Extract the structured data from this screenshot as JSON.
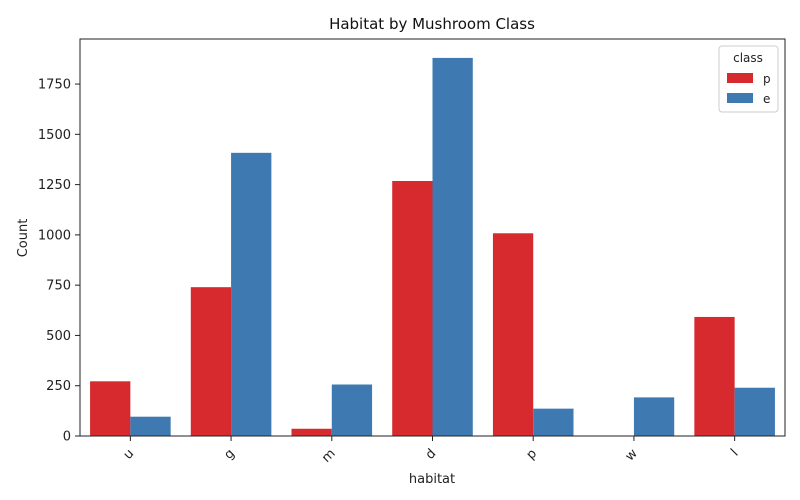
{
  "chart_data": {
    "type": "bar",
    "title": "Habitat by Mushroom Class",
    "xlabel": "habitat",
    "ylabel": "Count",
    "categories": [
      "u",
      "g",
      "m",
      "d",
      "p",
      "w",
      "l"
    ],
    "series": [
      {
        "name": "p",
        "color": "#d62a2f",
        "values": [
          272,
          740,
          36,
          1268,
          1008,
          0,
          592
        ]
      },
      {
        "name": "e",
        "color": "#3e79b1",
        "values": [
          96,
          1408,
          256,
          1880,
          136,
          192,
          240
        ]
      }
    ],
    "ylim": [
      0,
      1974
    ],
    "yticks": [
      0,
      250,
      500,
      750,
      1000,
      1250,
      1500,
      1750
    ],
    "legend": {
      "title": "class",
      "position": "top-right"
    },
    "grid": false
  }
}
